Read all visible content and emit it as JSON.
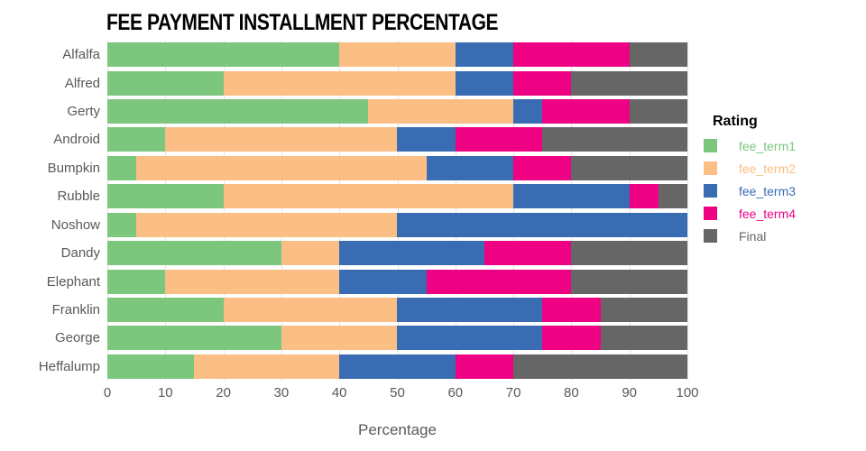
{
  "chart_data": {
    "type": "bar",
    "orientation": "horizontal",
    "stacked": true,
    "title": "FEE PAYMENT INSTALLMENT PERCENTAGE",
    "xlabel": "Percentage",
    "xlim": [
      0,
      100
    ],
    "xticks": [
      0,
      10,
      20,
      30,
      40,
      50,
      60,
      70,
      80,
      90,
      100
    ],
    "grid": true,
    "legend_title": "Rating",
    "legend_position": "right",
    "categories": [
      "Alfalfa",
      "Alfred",
      "Gerty",
      "Android",
      "Bumpkin",
      "Rubble",
      "Noshow",
      "Dandy",
      "Elephant",
      "Franklin",
      "George",
      "Heffalump"
    ],
    "series": [
      {
        "name": "fee_term1",
        "color": "#7DC67E",
        "values": [
          40,
          20,
          45,
          10,
          5,
          20,
          5,
          30,
          10,
          20,
          30,
          15
        ]
      },
      {
        "name": "fee_term2",
        "color": "#FBBE85",
        "values": [
          20,
          40,
          25,
          40,
          50,
          50,
          45,
          10,
          30,
          30,
          20,
          25
        ]
      },
      {
        "name": "fee_term3",
        "color": "#3A6CB3",
        "values": [
          10,
          10,
          5,
          10,
          15,
          20,
          50,
          25,
          15,
          25,
          25,
          20
        ]
      },
      {
        "name": "fee_term4",
        "color": "#EE0283",
        "values": [
          20,
          10,
          15,
          15,
          10,
          5,
          0,
          15,
          25,
          10,
          10,
          10
        ]
      },
      {
        "name": "Final",
        "color": "#666666",
        "values": [
          10,
          20,
          10,
          25,
          20,
          5,
          0,
          20,
          20,
          15,
          15,
          30
        ]
      }
    ],
    "colors": {
      "axis_text": "#595959",
      "gridline": "#e3e3e3",
      "title_text": "#000000"
    }
  }
}
